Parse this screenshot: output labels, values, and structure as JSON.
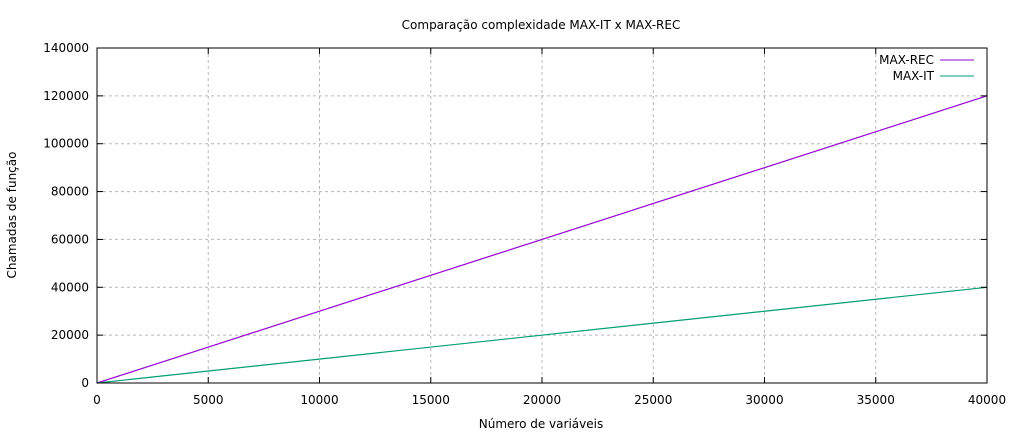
{
  "chart_data": {
    "type": "line",
    "title": "Comparação complexidade MAX-IT x MAX-REC",
    "xlabel": "Número de variáveis",
    "ylabel": "Chamadas de função",
    "xlim": [
      0,
      40000
    ],
    "ylim": [
      0,
      140000
    ],
    "xticks": [
      0,
      5000,
      10000,
      15000,
      20000,
      25000,
      30000,
      35000,
      40000
    ],
    "yticks": [
      0,
      20000,
      40000,
      60000,
      80000,
      100000,
      120000,
      140000
    ],
    "grid": true,
    "legend_position": "top-right",
    "series": [
      {
        "name": "MAX-REC",
        "color": "#9400d3",
        "x": [
          0,
          40000
        ],
        "y": [
          0,
          120000
        ]
      },
      {
        "name": "MAX-IT",
        "color": "#009e73",
        "x": [
          0,
          40000
        ],
        "y": [
          0,
          40000
        ]
      }
    ]
  }
}
